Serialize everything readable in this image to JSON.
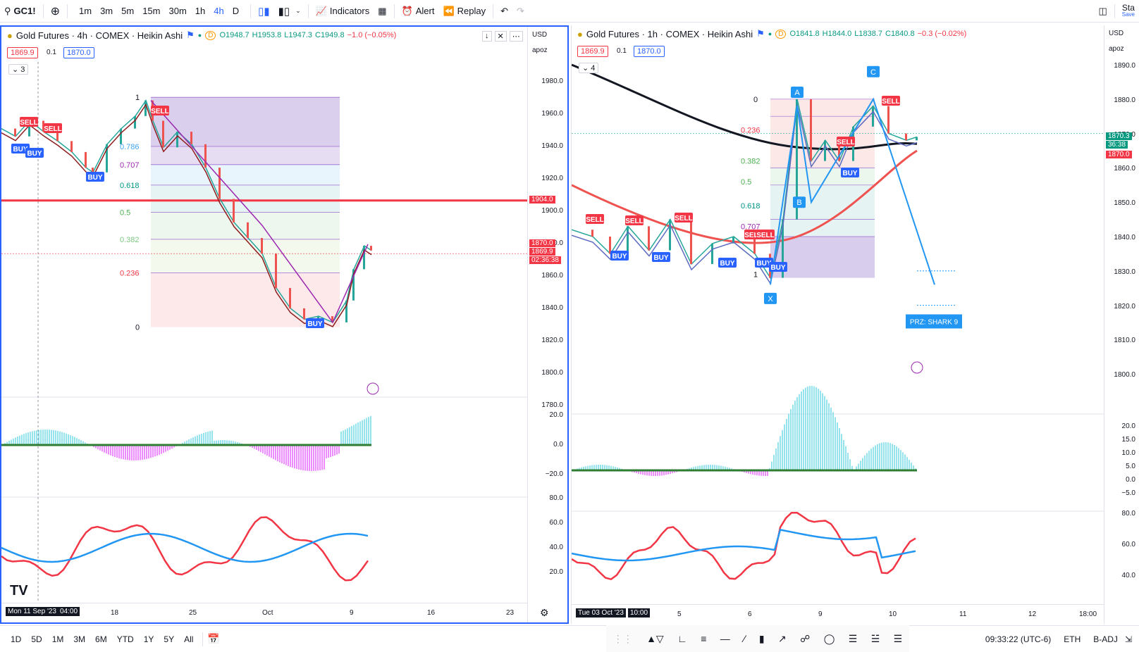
{
  "symbol": "GC1!",
  "toolbar": {
    "timeframes": [
      "1m",
      "3m",
      "5m",
      "15m",
      "30m",
      "1h",
      "4h",
      "D"
    ],
    "active_timeframe": "4h",
    "indicators_label": "Indicators",
    "alert_label": "Alert",
    "replay_label": "Replay",
    "right_text": "Sta",
    "right_subtext": "Save"
  },
  "left_chart": {
    "title": "Gold Futures · 4h · COMEX · Heikin Ashi",
    "flag": "D",
    "ohlc": {
      "o": "O1948.7",
      "h": "H1953.8",
      "l": "L1947.3",
      "c": "C1949.8",
      "chg": "−1.0 (−0.05%)"
    },
    "bid": "1869.9",
    "spread": "0.1",
    "ask": "1870.0",
    "collapse": "3",
    "currency": "USD",
    "scale_label": "apoz",
    "price_ticks": [
      "1980.0",
      "1960.0",
      "1940.0",
      "1920.0",
      "1900.0",
      "1880.0",
      "1860.0",
      "1840.0",
      "1820.0",
      "1800.0",
      "1780.0"
    ],
    "price_badges": [
      {
        "text": "1904.0",
        "color": "#f23645"
      },
      {
        "text": "1870.0",
        "color": "#f23645"
      },
      {
        "text": "1869.9",
        "color": "#f23645"
      },
      {
        "text": "02:36:38",
        "color": "#f23645"
      }
    ],
    "osc_ticks": [
      "20.0",
      "0.0",
      "−20.0"
    ],
    "rsi_ticks": [
      "80.0",
      "60.0",
      "40.0",
      "20.0"
    ],
    "x_ticks": [
      "Mon 11 Sep '23",
      "04:00",
      "18",
      "25",
      "Oct",
      "9",
      "16",
      "23"
    ],
    "fib_labels": [
      "1",
      "0.786",
      "0.707",
      "0.618",
      "0.5",
      "0.382",
      "0.236",
      "0"
    ],
    "signals": [
      "SELL",
      "SELL",
      "SELL",
      "BUY",
      "BUY",
      "BUY",
      "BUY"
    ]
  },
  "right_chart": {
    "title": "Gold Futures · 1h · COMEX · Heikin Ashi",
    "flag": "D",
    "ohlc": {
      "o": "O1841.8",
      "h": "H1844.0",
      "l": "L1838.7",
      "c": "C1840.8",
      "chg": "−0.3 (−0.02%)"
    },
    "bid": "1869.9",
    "spread": "0.1",
    "ask": "1870.0",
    "collapse": "4",
    "currency": "USD",
    "scale_label": "apoz",
    "price_ticks": [
      "1890.0",
      "1880.0",
      "1870.0",
      "1860.0",
      "1850.0",
      "1840.0",
      "1830.0",
      "1820.0",
      "1810.0",
      "1800.0"
    ],
    "price_badges": [
      {
        "text": "1870.3",
        "color": "#089981"
      },
      {
        "text": "36:38",
        "color": "#089981"
      },
      {
        "text": "1870.0",
        "color": "#f23645"
      }
    ],
    "osc_ticks": [
      "20.0",
      "15.0",
      "10.0",
      "5.0",
      "0.0",
      "−5.0"
    ],
    "rsi_ticks": [
      "80.0",
      "60.0",
      "40.0"
    ],
    "x_ticks": [
      "Tue 03 Oct '23",
      "10:00",
      "5",
      "6",
      "9",
      "10",
      "11",
      "12",
      "18:00"
    ],
    "fib_labels": [
      "0",
      "0.236",
      "0.382",
      "0.5",
      "0.618",
      "0.707",
      "1"
    ],
    "harmonic_points": [
      "X",
      "A",
      "B",
      "C"
    ],
    "prz_label": "PRZ: SHARK 9",
    "signals": [
      "SELL",
      "SELL",
      "SELL",
      "SELL",
      "SELL",
      "SELL",
      "SELL",
      "BUY",
      "BUY",
      "BUY",
      "BUY",
      "BUY",
      "BUY"
    ]
  },
  "bottom": {
    "ranges": [
      "1D",
      "5D",
      "1M",
      "3M",
      "6M",
      "YTD",
      "1Y",
      "5Y",
      "All"
    ],
    "time": "09:33:22 (UTC-6)",
    "session": "ETH",
    "adj": "B-ADJ"
  }
}
